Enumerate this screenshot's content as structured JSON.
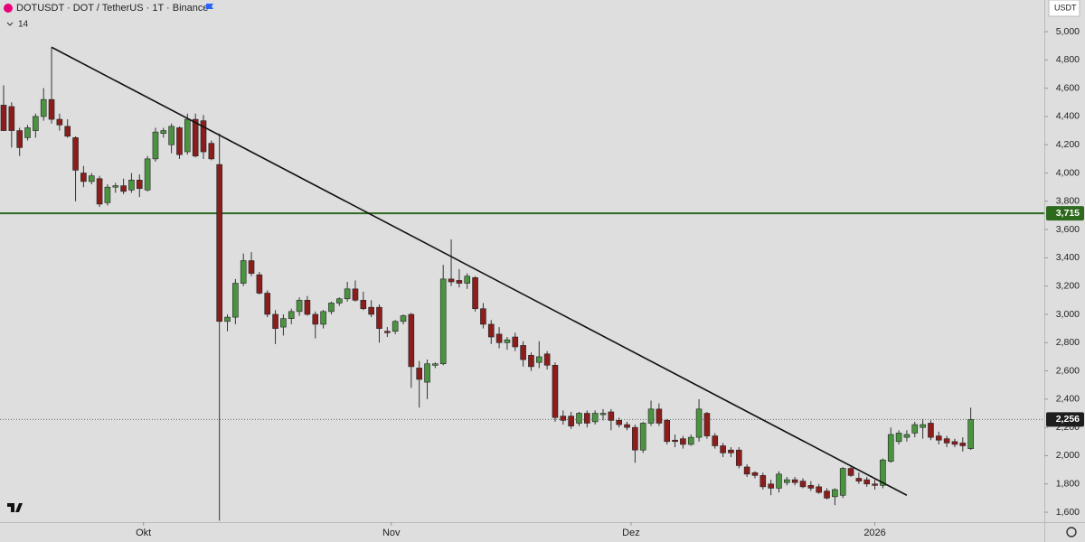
{
  "chart_data": {
    "type": "candlestick",
    "title": "DOTUSDT · DOT / TetherUS · 1T · Binance",
    "indicator_count": "14",
    "currency": "USDT",
    "up_color": "#4a9440",
    "down_color": "#8c1d1d",
    "open": [
      4480,
      4470,
      4300,
      4250,
      4300,
      4400,
      4520,
      4380,
      4330,
      4250,
      4000,
      3940,
      3960,
      3790,
      3900,
      3910,
      3880,
      3950,
      3880,
      4100,
      4280,
      4200,
      4320,
      4150,
      4380,
      4370,
      4210,
      4060,
      2950,
      2980,
      3220,
      3380,
      3280,
      3150,
      3000,
      2910,
      2970,
      3020,
      3100,
      3000,
      2930,
      3020,
      3080,
      3110,
      3180,
      3100,
      3050,
      3050,
      2880,
      2880,
      2950,
      3000,
      2620,
      2520,
      2640,
      2650,
      3250,
      3240,
      3220,
      3260,
      3040,
      2930,
      2860,
      2800,
      2840,
      2780,
      2710,
      2660,
      2720,
      2640,
      2280,
      2280,
      2230,
      2300,
      2240,
      2290,
      2310,
      2250,
      2220,
      2200,
      2040,
      2230,
      2330,
      2250,
      2110,
      2120,
      2080,
      2130,
      2300,
      2140,
      2070,
      2040,
      2040,
      1920,
      1880,
      1860,
      1800,
      1770,
      1810,
      1830,
      1820,
      1790,
      1780,
      1750,
      1710,
      1720,
      1910,
      1840,
      1830,
      1800,
      1790,
      1960,
      2100,
      2130,
      2160,
      2200,
      2230,
      2140,
      2120,
      2100,
      2090,
      2050
    ],
    "high": [
      4620,
      4500,
      4320,
      4340,
      4420,
      4600,
      4890,
      4420,
      4380,
      4260,
      4050,
      4000,
      3980,
      3920,
      3930,
      3960,
      4000,
      3990,
      4120,
      4320,
      4320,
      4350,
      4330,
      4420,
      4420,
      4410,
      4230,
      4280,
      3000,
      3250,
      3430,
      3440,
      3300,
      3170,
      3030,
      3000,
      3040,
      3120,
      3130,
      3020,
      3030,
      3090,
      3120,
      3230,
      3240,
      3160,
      3100,
      3070,
      2910,
      2960,
      3000,
      3010,
      2670,
      2680,
      2660,
      3350,
      3530,
      3320,
      3290,
      3270,
      3080,
      2960,
      2910,
      2840,
      2870,
      2810,
      2730,
      2810,
      2740,
      2660,
      2320,
      2310,
      2310,
      2320,
      2320,
      2330,
      2330,
      2270,
      2240,
      2220,
      2240,
      2390,
      2370,
      2260,
      2150,
      2140,
      2150,
      2400,
      2310,
      2160,
      2090,
      2060,
      2060,
      1940,
      1890,
      1880,
      1830,
      1890,
      1850,
      1850,
      1840,
      1820,
      1800,
      1770,
      1770,
      1920,
      1930,
      1880,
      1850,
      1830,
      1980,
      2200,
      2180,
      2180,
      2240,
      2260,
      2250,
      2170,
      2140,
      2120,
      2130,
      2340
    ],
    "low": [
      4300,
      4180,
      4120,
      4230,
      4250,
      4370,
      4350,
      4300,
      4250,
      3800,
      3900,
      3920,
      3760,
      3770,
      3860,
      3850,
      3860,
      3830,
      3870,
      4080,
      4250,
      4140,
      4100,
      4130,
      4110,
      4100,
      4090,
      1540,
      2880,
      2930,
      3200,
      3270,
      3140,
      2980,
      2790,
      2850,
      2930,
      2990,
      2990,
      2830,
      2900,
      3000,
      3060,
      3090,
      3090,
      3030,
      2980,
      2800,
      2840,
      2860,
      2930,
      2480,
      2340,
      2400,
      2620,
      2640,
      3200,
      3190,
      3180,
      3020,
      2900,
      2790,
      2760,
      2750,
      2740,
      2630,
      2600,
      2620,
      2610,
      2240,
      2220,
      2190,
      2210,
      2200,
      2220,
      2250,
      2180,
      2200,
      2180,
      1950,
      2020,
      2210,
      2210,
      2080,
      2060,
      2050,
      2070,
      2100,
      2120,
      2050,
      1990,
      1990,
      1910,
      1850,
      1840,
      1760,
      1720,
      1740,
      1790,
      1790,
      1770,
      1750,
      1730,
      1690,
      1650,
      1700,
      1850,
      1800,
      1780,
      1760,
      1770,
      1950,
      2080,
      2100,
      2130,
      2120,
      2110,
      2080,
      2060,
      2060,
      2030,
      2040
    ],
    "close": [
      4300,
      4300,
      4180,
      4320,
      4400,
      4520,
      4380,
      4340,
      4260,
      4020,
      3940,
      3980,
      3780,
      3900,
      3910,
      3870,
      3950,
      3890,
      4100,
      4290,
      4300,
      4330,
      4130,
      4380,
      4120,
      4150,
      4100,
      2950,
      2980,
      3220,
      3380,
      3290,
      3150,
      3000,
      2900,
      2970,
      3020,
      3100,
      3000,
      2930,
      3020,
      3080,
      3110,
      3180,
      3100,
      3040,
      3000,
      2900,
      2870,
      2950,
      2990,
      2630,
      2540,
      2650,
      2650,
      3250,
      3230,
      3220,
      3270,
      3040,
      2930,
      2840,
      2800,
      2820,
      2770,
      2680,
      2630,
      2700,
      2640,
      2270,
      2250,
      2210,
      2300,
      2230,
      2300,
      2300,
      2250,
      2220,
      2200,
      2040,
      2230,
      2330,
      2230,
      2100,
      2100,
      2080,
      2130,
      2330,
      2140,
      2070,
      2020,
      2020,
      1930,
      1870,
      1860,
      1780,
      1770,
      1870,
      1830,
      1810,
      1780,
      1770,
      1740,
      1700,
      1760,
      1910,
      1860,
      1820,
      1800,
      1790,
      1970,
      2150,
      2160,
      2150,
      2220,
      2220,
      2130,
      2110,
      2090,
      2080,
      2070,
      2256
    ],
    "last_price_label": "2,256",
    "hline": {
      "value": 3715,
      "label": "3,715",
      "color": "#2d6a1e"
    },
    "trendline": {
      "x": [
        6,
        113
      ],
      "y": [
        4890,
        1720
      ]
    },
    "ylim": [
      1530,
      5224
    ],
    "yticks": [
      {
        "value": 1600,
        "label": "1,600"
      },
      {
        "value": 1800,
        "label": "1,800"
      },
      {
        "value": 2000,
        "label": "2,000"
      },
      {
        "value": 2200,
        "label": "2,200"
      },
      {
        "value": 2400,
        "label": "2,400"
      },
      {
        "value": 2600,
        "label": "2,600"
      },
      {
        "value": 2800,
        "label": "2,800"
      },
      {
        "value": 3000,
        "label": "3,000"
      },
      {
        "value": 3200,
        "label": "3,200"
      },
      {
        "value": 3400,
        "label": "3,400"
      },
      {
        "value": 3600,
        "label": "3,600"
      },
      {
        "value": 3800,
        "label": "3,800"
      },
      {
        "value": 4000,
        "label": "4,000"
      },
      {
        "value": 4200,
        "label": "4,200"
      },
      {
        "value": 4400,
        "label": "4,400"
      },
      {
        "value": 4600,
        "label": "4,600"
      },
      {
        "value": 4800,
        "label": "4,800"
      },
      {
        "value": 5000,
        "label": "5,000"
      }
    ],
    "xticks": [
      {
        "value": 17.5,
        "label": "Okt"
      },
      {
        "value": 48.5,
        "label": "Nov"
      },
      {
        "value": 78.5,
        "label": "Dez"
      },
      {
        "value": 109,
        "label": "2026"
      }
    ]
  }
}
